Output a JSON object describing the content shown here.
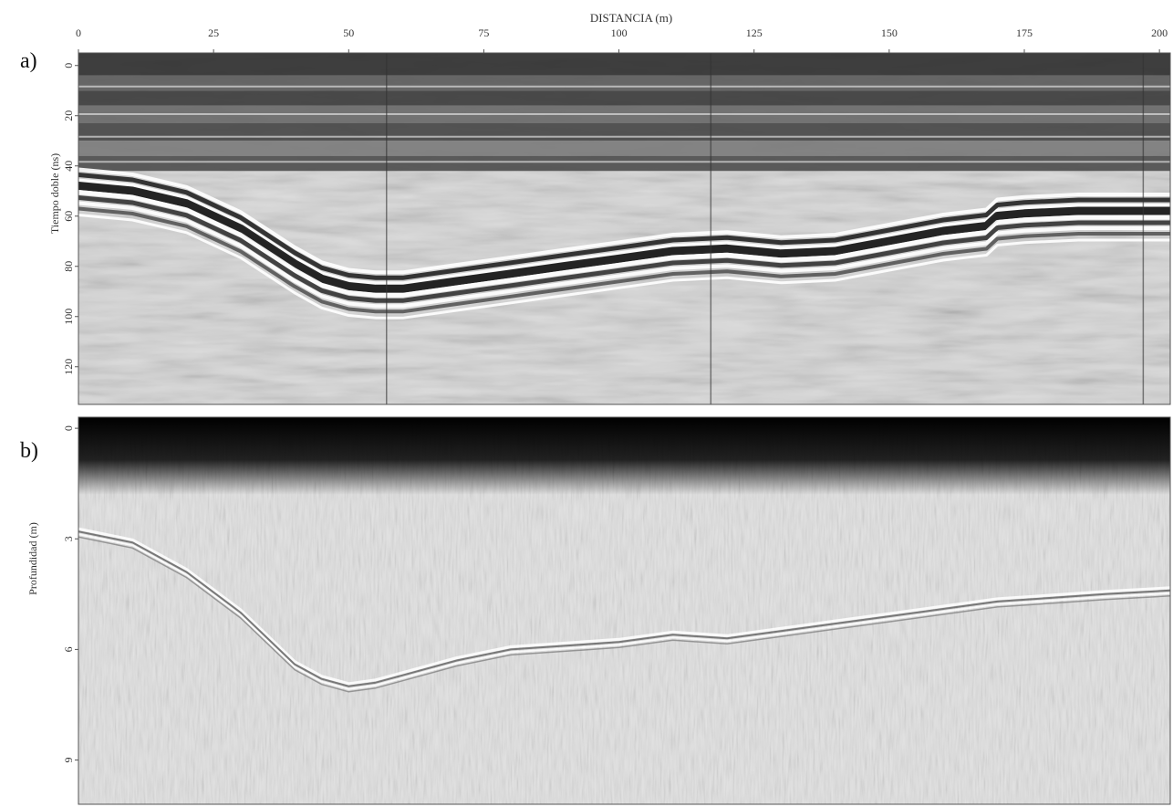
{
  "chart_data": [
    {
      "panel": "a)",
      "type": "heatmap",
      "xlabel": "DISTANCIA (m)",
      "ylabel": "Tiempo doble (ns)",
      "x_ticks": [
        0,
        25,
        50,
        75,
        100,
        125,
        150,
        175,
        200
      ],
      "y_ticks": [
        0,
        20,
        40,
        60,
        80,
        100,
        120
      ],
      "xlim": [
        0,
        202
      ],
      "ylim": [
        -5,
        135
      ],
      "reflector": {
        "x": [
          0,
          10,
          20,
          30,
          40,
          45,
          50,
          55,
          60,
          70,
          80,
          90,
          100,
          110,
          120,
          130,
          140,
          150,
          160,
          168,
          170,
          175,
          185,
          195,
          202
        ],
        "y": [
          45,
          47,
          52,
          62,
          76,
          82,
          85,
          86,
          86,
          83,
          80,
          77,
          74,
          71,
          70,
          72,
          71,
          67,
          63,
          61,
          57,
          56,
          55,
          55,
          55
        ]
      },
      "vertical_artifacts_x": [
        57,
        117,
        197
      ]
    },
    {
      "panel": "b)",
      "type": "heatmap",
      "ylabel": "Profundidad (m)",
      "y_ticks": [
        0,
        3,
        6,
        9
      ],
      "xlim": [
        0,
        202
      ],
      "ylim": [
        -0.3,
        10.2
      ],
      "reflector": {
        "x": [
          0,
          10,
          20,
          30,
          40,
          45,
          50,
          55,
          60,
          70,
          80,
          90,
          100,
          110,
          120,
          130,
          140,
          150,
          160,
          170,
          180,
          190,
          202
        ],
        "y": [
          2.8,
          3.1,
          3.9,
          5.0,
          6.4,
          6.8,
          7.0,
          6.9,
          6.7,
          6.3,
          6.0,
          5.9,
          5.8,
          5.6,
          5.7,
          5.5,
          5.3,
          5.1,
          4.9,
          4.7,
          4.6,
          4.5,
          4.4
        ]
      }
    }
  ]
}
